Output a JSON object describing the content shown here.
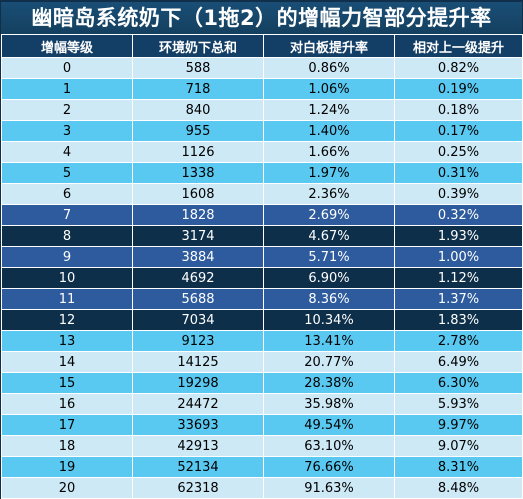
{
  "title": "幽暗岛系统奶下（1拖2）的增幅力智部分提升率",
  "colors": {
    "header": "#133f66",
    "light_row": "#cde9f6",
    "sky_row": "#5ac9f2",
    "navy_row": "#2e5b9e",
    "dark_row": "#0d2f49"
  },
  "table": {
    "headers": [
      "增幅等级",
      "环境奶下总和",
      "对白板提升率",
      "相对上一级提升"
    ],
    "rows": [
      {
        "style": "light",
        "cells": [
          "0",
          "588",
          "0.86%",
          "0.82%"
        ]
      },
      {
        "style": "sky",
        "cells": [
          "1",
          "718",
          "1.06%",
          "0.19%"
        ]
      },
      {
        "style": "light",
        "cells": [
          "2",
          "840",
          "1.24%",
          "0.18%"
        ]
      },
      {
        "style": "sky",
        "cells": [
          "3",
          "955",
          "1.40%",
          "0.17%"
        ]
      },
      {
        "style": "light",
        "cells": [
          "4",
          "1126",
          "1.66%",
          "0.25%"
        ]
      },
      {
        "style": "sky",
        "cells": [
          "5",
          "1338",
          "1.97%",
          "0.31%"
        ]
      },
      {
        "style": "light",
        "cells": [
          "6",
          "1608",
          "2.36%",
          "0.39%"
        ]
      },
      {
        "style": "navy",
        "cells": [
          "7",
          "1828",
          "2.69%",
          "0.32%"
        ]
      },
      {
        "style": "dark",
        "cells": [
          "8",
          "3174",
          "4.67%",
          "1.93%"
        ]
      },
      {
        "style": "navy",
        "cells": [
          "9",
          "3884",
          "5.71%",
          "1.00%"
        ]
      },
      {
        "style": "dark",
        "cells": [
          "10",
          "4692",
          "6.90%",
          "1.12%"
        ]
      },
      {
        "style": "navy",
        "cells": [
          "11",
          "5688",
          "8.36%",
          "1.37%"
        ]
      },
      {
        "style": "dark",
        "cells": [
          "12",
          "7034",
          "10.34%",
          "1.83%"
        ]
      },
      {
        "style": "sky",
        "cells": [
          "13",
          "9123",
          "13.41%",
          "2.78%"
        ]
      },
      {
        "style": "light",
        "cells": [
          "14",
          "14125",
          "20.77%",
          "6.49%"
        ]
      },
      {
        "style": "sky",
        "cells": [
          "15",
          "19298",
          "28.38%",
          "6.30%"
        ]
      },
      {
        "style": "light",
        "cells": [
          "16",
          "24472",
          "35.98%",
          "5.93%"
        ]
      },
      {
        "style": "sky",
        "cells": [
          "17",
          "33693",
          "49.54%",
          "9.97%"
        ]
      },
      {
        "style": "light",
        "cells": [
          "18",
          "42913",
          "63.10%",
          "9.07%"
        ]
      },
      {
        "style": "sky",
        "cells": [
          "19",
          "52134",
          "76.66%",
          "8.31%"
        ]
      },
      {
        "style": "light",
        "cells": [
          "20",
          "62318",
          "91.63%",
          "8.48%"
        ]
      }
    ]
  }
}
